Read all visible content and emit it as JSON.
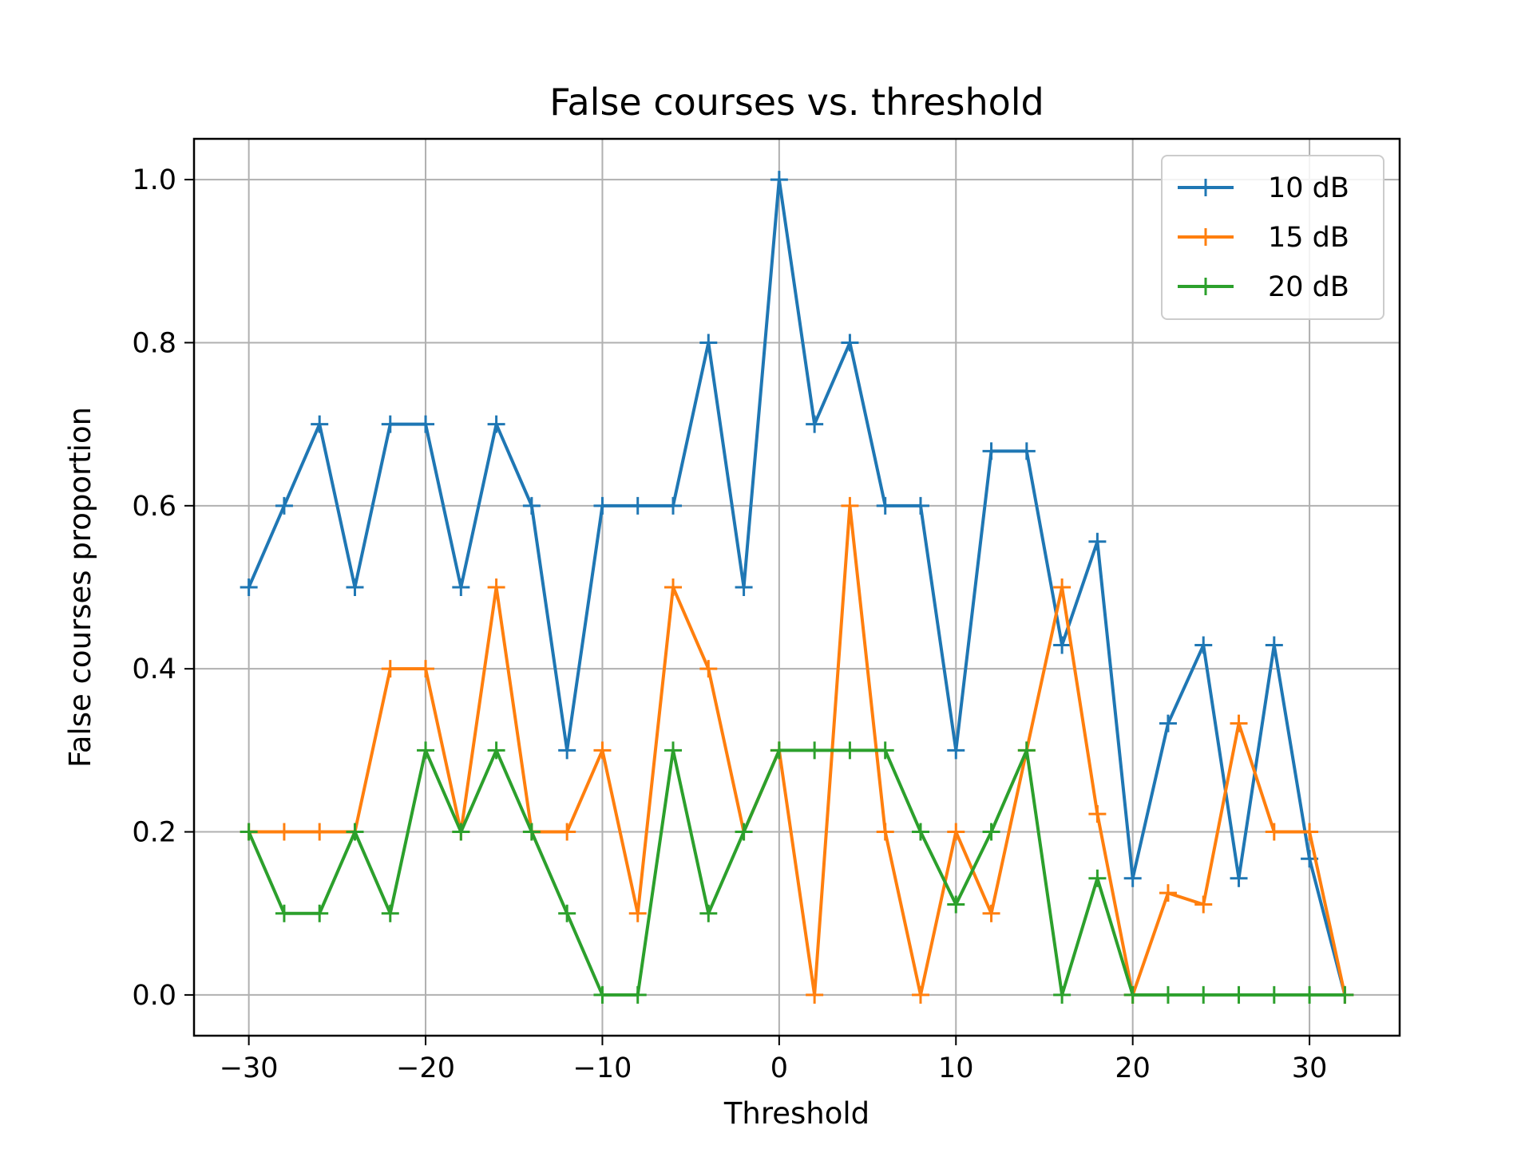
{
  "chart_data": {
    "type": "line",
    "title": "False courses vs. threshold",
    "xlabel": "Threshold",
    "ylabel": "False courses proportion",
    "xlim": [
      -33.1,
      35.1
    ],
    "ylim": [
      -0.05,
      1.05
    ],
    "x_ticks": [
      -30,
      -20,
      -10,
      0,
      10,
      20,
      30
    ],
    "x_tick_labels": [
      "−30",
      "−20",
      "−10",
      "0",
      "10",
      "20",
      "30"
    ],
    "y_ticks": [
      0.0,
      0.2,
      0.4,
      0.6,
      0.8,
      1.0
    ],
    "y_tick_labels": [
      "0.0",
      "0.2",
      "0.4",
      "0.6",
      "0.8",
      "1.0"
    ],
    "grid": true,
    "legend_position": "top-right",
    "marker": "+",
    "x": [
      -30,
      -28,
      -26,
      -24,
      -22,
      -20,
      -18,
      -16,
      -14,
      -12,
      -10,
      -8,
      -6,
      -4,
      -2,
      0,
      2,
      4,
      6,
      8,
      10,
      12,
      14,
      16,
      18,
      20,
      22,
      24,
      26,
      28,
      30,
      32
    ],
    "series": [
      {
        "name": "10 dB",
        "color": "#1f77b4",
        "values": [
          0.5,
          0.6,
          0.7,
          0.5,
          0.7,
          0.7,
          0.5,
          0.7,
          0.6,
          0.3,
          0.6,
          0.6,
          0.6,
          0.8,
          0.5,
          1.0,
          0.7,
          0.8,
          0.6,
          0.6,
          0.3,
          0.667,
          0.667,
          0.429,
          0.556,
          0.143,
          0.333,
          0.429,
          0.143,
          0.429,
          0.167,
          0.0
        ]
      },
      {
        "name": "15 dB",
        "color": "#ff7f0e",
        "values": [
          0.2,
          0.2,
          0.2,
          0.2,
          0.4,
          0.4,
          0.2,
          0.5,
          0.2,
          0.2,
          0.3,
          0.1,
          0.5,
          0.4,
          0.2,
          0.3,
          0.0,
          0.6,
          0.2,
          0.0,
          0.2,
          0.1,
          0.3,
          0.5,
          0.222,
          0.0,
          0.125,
          0.111,
          0.333,
          0.2,
          0.2,
          0.0
        ]
      },
      {
        "name": "20 dB",
        "color": "#2ca02c",
        "values": [
          0.2,
          0.1,
          0.1,
          0.2,
          0.1,
          0.3,
          0.2,
          0.3,
          0.2,
          0.1,
          0.0,
          0.0,
          0.3,
          0.1,
          0.2,
          0.3,
          0.3,
          0.3,
          0.3,
          0.2,
          0.111,
          0.2,
          0.3,
          0.0,
          0.143,
          0.0,
          0.0,
          0.0,
          0.0,
          0.0,
          0.0,
          0.0
        ]
      }
    ]
  }
}
